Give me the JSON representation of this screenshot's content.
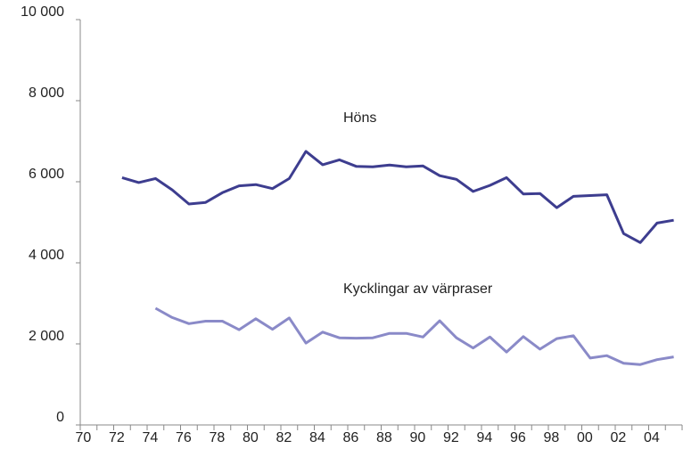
{
  "chart_data": {
    "type": "line",
    "categories": [
      "70",
      null,
      "72",
      null,
      "74",
      null,
      "76",
      null,
      "78",
      null,
      "80",
      null,
      "82",
      null,
      "84",
      null,
      "86",
      null,
      "88",
      null,
      "90",
      null,
      "92",
      null,
      "94",
      null,
      "96",
      null,
      "98",
      null,
      "00",
      null,
      "02",
      null,
      "04",
      null
    ],
    "series": [
      {
        "name": "Höns",
        "color": "#3d3d8f",
        "values": [
          null,
          null,
          6100,
          5980,
          6080,
          5800,
          5450,
          5490,
          5730,
          5900,
          5930,
          5830,
          6080,
          6750,
          6420,
          6540,
          6380,
          6370,
          6410,
          6370,
          6390,
          6150,
          6060,
          5760,
          5910,
          6100,
          5700,
          5710,
          5360,
          5640,
          5660,
          5680,
          4720,
          4500,
          4980,
          5050
        ]
      },
      {
        "name": "Kycklingar av värpraser",
        "color": "#8a8ac8",
        "values": [
          null,
          null,
          null,
          null,
          2880,
          2650,
          2500,
          2560,
          2560,
          2350,
          2620,
          2360,
          2640,
          2020,
          2290,
          2150,
          2140,
          2150,
          2260,
          2260,
          2170,
          2570,
          2150,
          1900,
          2170,
          1800,
          2180,
          1870,
          2130,
          2200,
          1650,
          1710,
          1520,
          1490,
          1610,
          1680
        ]
      }
    ],
    "ylim": [
      0,
      10000
    ],
    "yticks": [
      0,
      {
        "value": 2000,
        "label": "2 000"
      },
      {
        "value": 4000,
        "label": "4 000"
      },
      {
        "value": 6000,
        "label": "6 000"
      },
      {
        "value": 8000,
        "label": "8 000"
      },
      {
        "value": 10000,
        "label": "10 000"
      }
    ],
    "grid": false
  }
}
